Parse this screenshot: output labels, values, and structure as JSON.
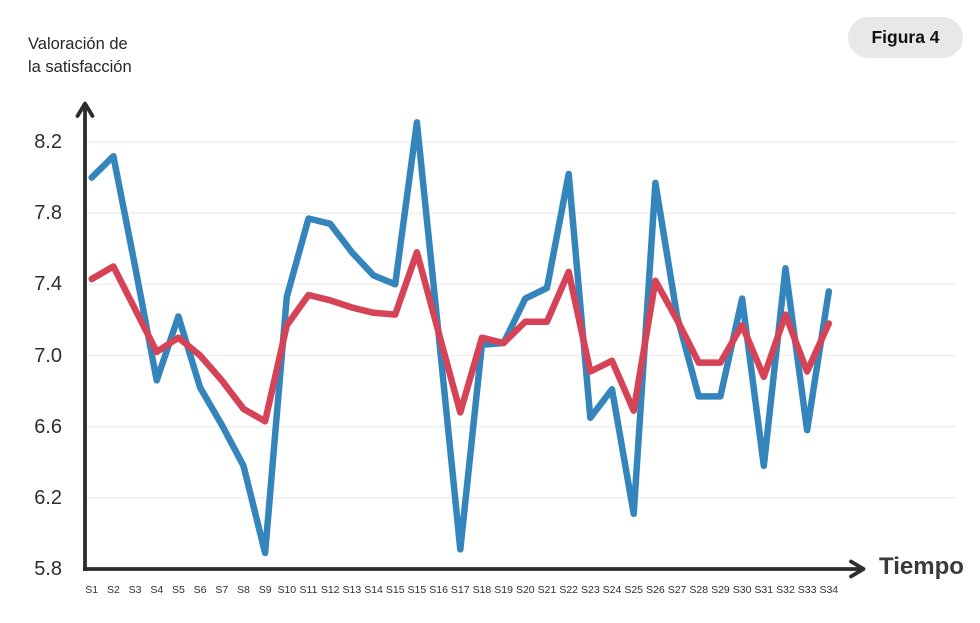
{
  "header": {
    "title_line1": "Valoración de",
    "title_line2": "la satisfacción",
    "figure_label": "Figura 4"
  },
  "axes": {
    "x_title": "Tiempo",
    "y_ticks": [
      "8.2",
      "7.8",
      "7.4",
      "7.0",
      "6.6",
      "6.2",
      "5.8"
    ]
  },
  "chart_data": {
    "type": "line",
    "title": "Valoración de la satisfacción",
    "xlabel": "Tiempo",
    "ylabel": "Valoración de la satisfacción",
    "ylim": [
      5.8,
      8.2
    ],
    "y_tick_step": 0.4,
    "grid": "horizontal",
    "legend": "none",
    "categories": [
      "S1",
      "S2",
      "S3",
      "S4",
      "S5",
      "S6",
      "S7",
      "S8",
      "S9",
      "S10",
      "S11",
      "S12",
      "S13",
      "S14",
      "S15",
      "S15",
      "S16",
      "S17",
      "S18",
      "S19",
      "S20",
      "S21",
      "S22",
      "S23",
      "S24",
      "S25",
      "S26",
      "S27",
      "S28",
      "S29",
      "S30",
      "S31",
      "S32",
      "S33",
      "S34"
    ],
    "series": [
      {
        "name": "serie-azul",
        "color": "#3585bd",
        "values": [
          8.0,
          8.12,
          7.5,
          6.86,
          7.22,
          6.82,
          6.61,
          6.38,
          5.89,
          7.33,
          7.77,
          7.74,
          7.58,
          7.45,
          7.4,
          8.31,
          7.12,
          5.91,
          7.06,
          7.07,
          7.32,
          7.38,
          8.02,
          6.65,
          6.81,
          6.11,
          7.97,
          7.22,
          6.77,
          6.77,
          7.32,
          6.38,
          7.49,
          6.58,
          7.36
        ]
      },
      {
        "name": "serie-roja",
        "color": "#d64356",
        "values": [
          7.43,
          7.5,
          7.26,
          7.02,
          7.1,
          7.0,
          6.86,
          6.7,
          6.63,
          7.17,
          7.34,
          7.31,
          7.27,
          7.24,
          7.23,
          7.58,
          7.13,
          6.68,
          7.1,
          7.07,
          7.19,
          7.19,
          7.47,
          6.91,
          6.97,
          6.69,
          7.42,
          7.2,
          6.96,
          6.96,
          7.17,
          6.88,
          7.23,
          6.91,
          7.18
        ]
      }
    ]
  },
  "colors": {
    "axis": "#2d2d2d",
    "grid": "#efefef",
    "badge_bg": "#e8e8e8",
    "text": "#2c2c2c"
  }
}
